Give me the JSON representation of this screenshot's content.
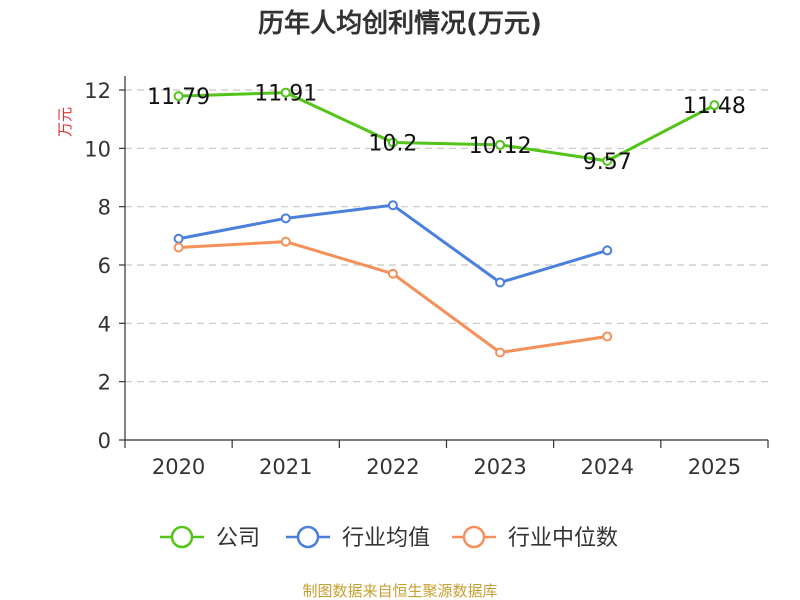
{
  "chart_data": {
    "type": "line",
    "title": "历年人均创利情况(万元)",
    "ylabel": "万元",
    "xlabel": "",
    "categories": [
      "2020",
      "2021",
      "2022",
      "2023",
      "2024",
      "2025"
    ],
    "ylim": [
      0,
      12
    ],
    "yticks": [
      0,
      2,
      4,
      6,
      8,
      10,
      12
    ],
    "grid": true,
    "legend_position": "bottom",
    "series": [
      {
        "name": "公司",
        "color": "#52c41a",
        "values": [
          11.79,
          11.91,
          10.2,
          10.12,
          9.57,
          11.48
        ],
        "labels": [
          "11.79",
          "11.91",
          "10.2",
          "10.12",
          "9.57",
          "11.48"
        ]
      },
      {
        "name": "行业均值",
        "color": "#4a7fdc",
        "values": [
          6.9,
          7.6,
          8.05,
          5.4,
          6.5,
          null
        ]
      },
      {
        "name": "行业中位数",
        "color": "#f5905a",
        "values": [
          6.6,
          6.8,
          5.7,
          3.0,
          3.55,
          null
        ]
      }
    ]
  },
  "source": "制图数据来自恒生聚源数据库"
}
